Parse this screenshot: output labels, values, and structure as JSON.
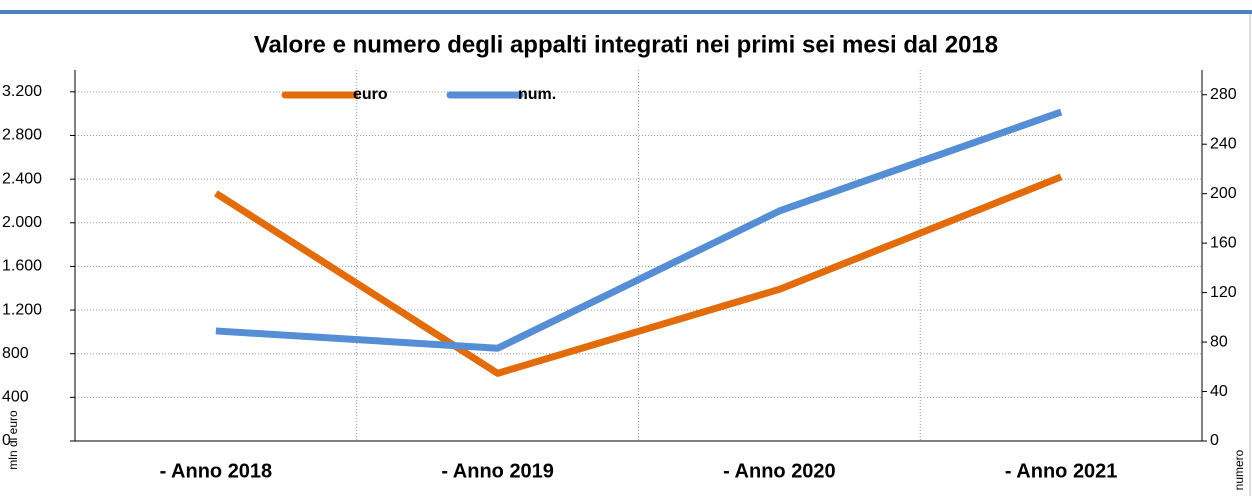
{
  "chart_data": {
    "type": "line",
    "title": "Valore e numero degli appalti integrati nei primi sei mesi dal 2018",
    "y_label": "mln di euro",
    "y2_label": "numero",
    "categories": [
      "- Anno 2018",
      "- Anno 2019",
      "- Anno 2020",
      "- Anno 2021"
    ],
    "series": [
      {
        "name": "euro",
        "color": "#e36c0a",
        "values": [
          2270,
          620,
          1390,
          2420
        ]
      },
      {
        "name": "num.",
        "color": "#558ed5",
        "axis": "y2",
        "values": [
          89,
          75,
          186,
          266
        ]
      }
    ],
    "ylim": [
      0,
      3400
    ],
    "yticks": [
      0,
      400,
      800,
      {
        "value": 1200,
        "label": "1.200"
      },
      {
        "value": 1600,
        "label": "1.600"
      },
      {
        "value": 2000,
        "label": "2.000"
      },
      {
        "value": 2400,
        "label": "2.400"
      },
      {
        "value": 2800,
        "label": "2.800"
      },
      {
        "value": 3200,
        "label": "3.200"
      }
    ],
    "y2lim": [
      0,
      300
    ],
    "y2ticks": [
      0,
      40,
      80,
      120,
      160,
      200,
      240,
      280
    ],
    "grid": true,
    "legend": "top"
  }
}
